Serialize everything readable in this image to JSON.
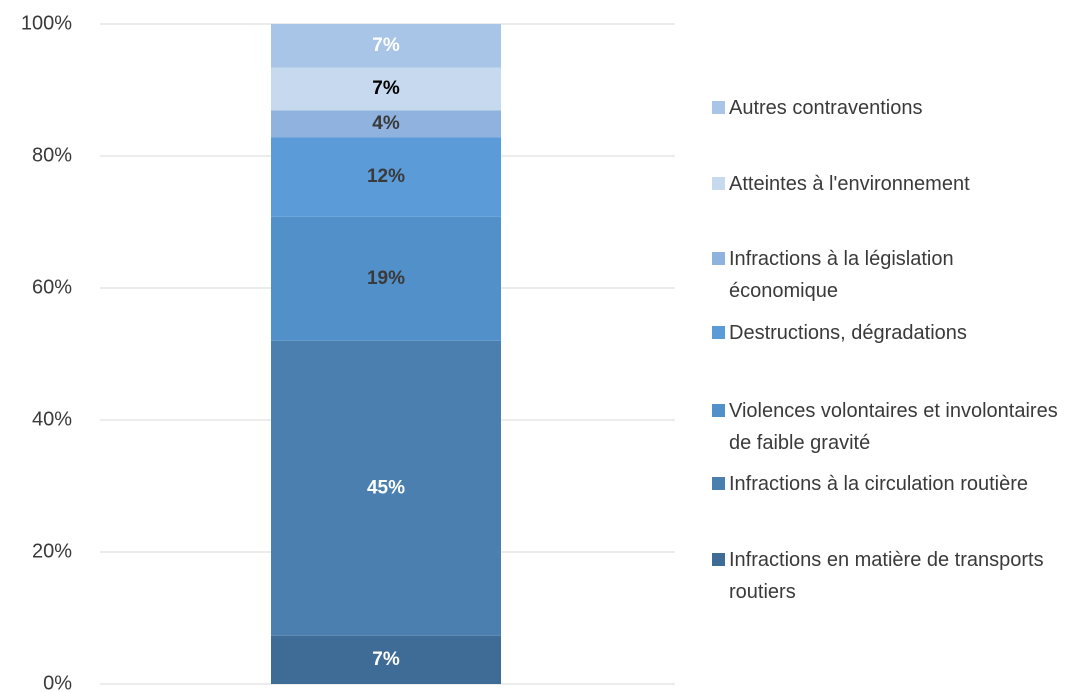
{
  "chart_data": {
    "type": "stacked_bar",
    "categories": [
      null
    ],
    "ylim": [
      0,
      100
    ],
    "yticks": [
      {
        "value": 0,
        "label": "0%"
      },
      {
        "value": 20,
        "label": "20%"
      },
      {
        "value": 40,
        "label": "40%"
      },
      {
        "value": 60,
        "label": "60%"
      },
      {
        "value": 80,
        "label": "80%"
      },
      {
        "value": 100,
        "label": "100%"
      }
    ],
    "grid": true,
    "legend": "right",
    "series": [
      {
        "name": "Infractions en matière de transports routiers",
        "color": "#3f6b97",
        "label_color": "#ffffff",
        "values": [
          7.3
        ],
        "value_labels": [
          "7%"
        ]
      },
      {
        "name": "Infractions à la circulation routière",
        "color": "#4a7fb0",
        "label_color": "#ffffff",
        "values": [
          44.7
        ],
        "value_labels": [
          "45%"
        ]
      },
      {
        "name": "Violences volontaires et involontaires de faible gravité",
        "color": "#5190c8",
        "label_color": "#3a3a3a",
        "values": [
          18.8
        ],
        "value_labels": [
          "19%"
        ]
      },
      {
        "name": "Destructions, dégradations",
        "color": "#5b9bd8",
        "label_color": "#3a3a3a",
        "values": [
          12
        ],
        "value_labels": [
          "12%"
        ]
      },
      {
        "name": "Infractions à la législation économique",
        "color": "#8fb2de",
        "label_color": "#3a3a3a",
        "values": [
          4.1
        ],
        "value_labels": [
          "4%"
        ]
      },
      {
        "name": "Atteintes à l'environnement",
        "color": "#c6d9ee",
        "label_color": "#000000",
        "values": [
          6.5
        ],
        "value_labels": [
          "7%"
        ]
      },
      {
        "name": "Autres contraventions",
        "color": "#a8c4e6",
        "label_color": "#ffffff",
        "values": [
          6.6
        ],
        "value_labels": [
          "7%"
        ]
      }
    ]
  }
}
